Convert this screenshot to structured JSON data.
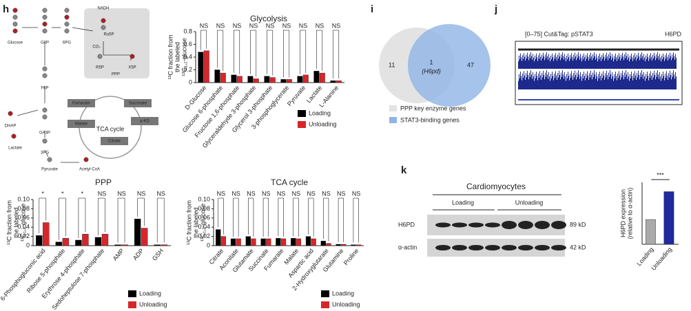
{
  "panels": {
    "h": "h",
    "i": "i",
    "j": "j",
    "k": "k"
  },
  "diagram": {
    "labels": [
      "Glucose",
      "G6P",
      "6PG",
      "NADH",
      "Ru5P",
      "CO₂",
      "PPP",
      "R5P",
      "X5P",
      "F6P",
      "DHAP",
      "GA3P",
      "Lactate",
      "3PG",
      "Pyruvate",
      "Acetyl-CoA",
      "TCA cycle",
      "Succinate",
      "Fumarate",
      "α-KG",
      "Malate",
      "Citrate"
    ]
  },
  "venn": {
    "left": "11",
    "overlap": "1",
    "overlap_gene": "(H6pd)",
    "right": "47",
    "legend": [
      "PPP key enzyme genes",
      "STAT3-binding genes"
    ]
  },
  "track": {
    "title": "[0–75] Cut&Tag: pSTAT3",
    "gene": "H6PD"
  },
  "blot": {
    "title": "Cardiomyocytes",
    "groups": [
      "Loading",
      "Unloading"
    ],
    "rows": [
      "H6PD",
      "α-actin"
    ],
    "sizes": [
      "89 kD",
      "42 kD"
    ]
  },
  "chart_data": [
    {
      "type": "bar",
      "title": "Glycolysis",
      "ylabel": [
        "¹³C fraction from",
        "the labeled",
        "¹³C₁,₂-glucose"
      ],
      "categories": [
        "D-Glucose",
        "Glucose 6-phosphate",
        "Fructose 1,6-phosphate",
        "Glyceraldehyde 3-phosphate",
        "Glycerol 3-phosphate",
        "3-phosphoglycerate",
        "Pyruvate",
        "Lactate",
        "L-Alanine"
      ],
      "series": [
        {
          "name": "Loading",
          "color": "#000000",
          "values": [
            0.48,
            0.2,
            0.12,
            0.1,
            0.1,
            0.05,
            0.1,
            0.18,
            0.03
          ]
        },
        {
          "name": "Unloading",
          "color": "#d7262a",
          "values": [
            0.5,
            0.15,
            0.1,
            0.06,
            0.08,
            0.05,
            0.12,
            0.15,
            0.03
          ]
        }
      ],
      "significance": [
        "NS",
        "NS",
        "NS",
        "NS",
        "NS",
        "NS",
        "NS",
        "NS",
        "NS"
      ],
      "ylim": [
        0,
        0.8
      ],
      "yticks": [
        0,
        0.2,
        0.4,
        0.6,
        0.8
      ],
      "legend": true
    },
    {
      "type": "bar",
      "title": "PPP",
      "ylabel": [
        "¹³C fraction from",
        "the labeled",
        "¹³C₁,₂-glucose"
      ],
      "categories": [
        "6-Phosphogluconic acid",
        "Ribose 5-phosphate",
        "Erythrose 4-phosphate",
        "Sedoheptulose 7-phosphate",
        "AMP",
        "ADP",
        "GSH"
      ],
      "series": [
        {
          "name": "Loading",
          "color": "#000000",
          "values": [
            0.022,
            0.008,
            0.012,
            0.018,
            0.002,
            0.058,
            0.002
          ]
        },
        {
          "name": "Unloading",
          "color": "#d7262a",
          "values": [
            0.05,
            0.016,
            0.025,
            0.025,
            0.002,
            0.038,
            0.002
          ]
        }
      ],
      "significance": [
        "*",
        "*",
        "*",
        "NS",
        "NS",
        "NS",
        "NS"
      ],
      "ylim": [
        0,
        0.1
      ],
      "yticks": [
        0,
        0.02,
        0.04,
        0.06,
        0.08,
        {
          "value": 0.1,
          "label": "0.10"
        }
      ],
      "legend": true
    },
    {
      "type": "bar",
      "title": "TCA cycle",
      "ylabel": [
        "¹³C fraction from",
        "the labeled",
        "¹³C₁,₂-glucose"
      ],
      "categories": [
        "Citrate",
        "Aconitate",
        "Glutamate",
        "Succinate",
        "Fumarate",
        "Malate",
        "Aspartic acid",
        "2-Hydroxyglutarate",
        "Glutamine",
        "Proline"
      ],
      "series": [
        {
          "name": "Loading",
          "color": "#000000",
          "values": [
            0.035,
            0.015,
            0.02,
            0.015,
            0.016,
            0.016,
            0.02,
            0.01,
            0.003,
            0.002
          ]
        },
        {
          "name": "Unloading",
          "color": "#d7262a",
          "values": [
            0.02,
            0.015,
            0.015,
            0.015,
            0.015,
            0.015,
            0.015,
            0.005,
            0.003,
            0.002
          ]
        }
      ],
      "significance": [
        "NS",
        "NS",
        "NS",
        "NS",
        "NS",
        "NS",
        "NS",
        "NS",
        "NS",
        "NS"
      ],
      "ylim": [
        0,
        0.1
      ],
      "yticks": [
        0,
        0.02,
        0.04,
        0.06,
        0.08,
        {
          "value": 0.1,
          "label": "0.10"
        }
      ],
      "legend": true
    },
    {
      "type": "bar",
      "ylabel": [
        "H6PD expression",
        "(relative to α-actin)"
      ],
      "categories": [
        "Loading",
        "Unloading"
      ],
      "series": [
        {
          "name": "Loading",
          "color": "#aaaaaa",
          "values": [
            0.4,
            null
          ]
        },
        {
          "name": "Unloading",
          "color": "#1f2a9e",
          "values": [
            null,
            0.85
          ]
        }
      ],
      "significance": [
        "***"
      ],
      "ylim": [
        0,
        1
      ],
      "legend": false
    }
  ]
}
